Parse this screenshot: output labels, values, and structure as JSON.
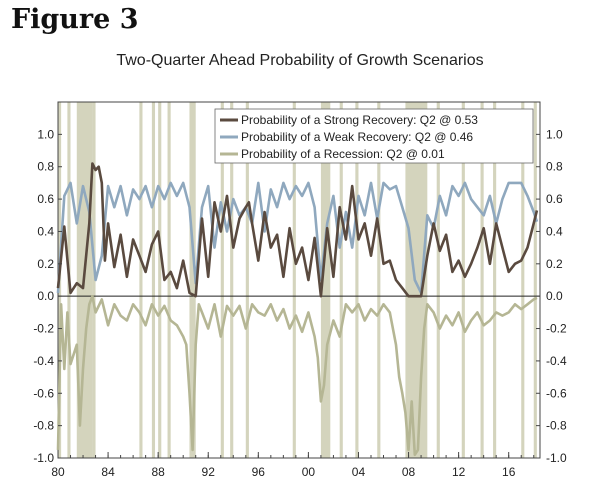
{
  "figure_label": "Figure 3",
  "chart_data": {
    "type": "line",
    "title": "Two-Quarter Ahead Probability of Growth Scenarios",
    "x_ticks": [
      "80",
      "84",
      "88",
      "92",
      "96",
      "00",
      "04",
      "08",
      "12",
      "16"
    ],
    "x_tick_values": [
      1980,
      1984,
      1988,
      1992,
      1996,
      2000,
      2004,
      2008,
      2012,
      2016
    ],
    "xlim": [
      1980,
      2018.5
    ],
    "ylim": [
      -1.0,
      1.2
    ],
    "y_ticks": [
      "1.0",
      "0.8",
      "0.6",
      "0.4",
      "0.2",
      "0.0",
      "-0.2",
      "-0.4",
      "-0.6",
      "-0.8",
      "-1.0"
    ],
    "y_tick_values": [
      1.0,
      0.8,
      0.6,
      0.4,
      0.2,
      0.0,
      -0.2,
      -0.4,
      -0.6,
      -0.8,
      -1.0
    ],
    "legend_position": "top-right",
    "recession_shading": [
      [
        1980.0,
        1980.25
      ],
      [
        1980.75,
        1981.0
      ],
      [
        1981.5,
        1982.75
      ],
      [
        1982.75,
        1983.0
      ],
      [
        1990.5,
        1991.0
      ],
      [
        1993.0,
        1993.25
      ],
      [
        2001.0,
        2001.75
      ],
      [
        2007.75,
        2009.5
      ],
      [
        2010.25,
        2010.5
      ],
      [
        2012.25,
        2012.5
      ],
      [
        2013.75,
        2014.0
      ],
      [
        2014.75,
        2015.0
      ],
      [
        2017.0,
        2017.25
      ],
      [
        2018.0,
        2018.25
      ],
      [
        1986.5,
        1986.75
      ],
      [
        1987.5,
        1987.75
      ],
      [
        1988.0,
        1988.25
      ],
      [
        1988.75,
        1989.0
      ],
      [
        1993.75,
        1994.0
      ],
      [
        1995.0,
        1995.25
      ],
      [
        1998.75,
        1999.0
      ],
      [
        2002.5,
        2002.75
      ],
      [
        2003.75,
        2004.0
      ],
      [
        2005.5,
        2005.75
      ]
    ],
    "series": [
      {
        "name": "Probability of a Strong Recovery: Q2 @ 0.53",
        "color": "#5a4a3f",
        "x": [
          1980,
          1980.5,
          1981,
          1981.5,
          1982,
          1982.5,
          1982.75,
          1983,
          1983.25,
          1983.5,
          1983.75,
          1984,
          1984.5,
          1985,
          1985.5,
          1986,
          1986.5,
          1987,
          1987.5,
          1988,
          1988.5,
          1989,
          1989.5,
          1990,
          1990.5,
          1991,
          1991.5,
          1992,
          1992.5,
          1993,
          1993.5,
          1994,
          1994.5,
          1995,
          1995.25,
          1995.5,
          1996,
          1996.5,
          1997,
          1997.5,
          1998,
          1998.5,
          1999,
          1999.5,
          2000,
          2000.5,
          2001,
          2001.5,
          2002,
          2002.5,
          2003,
          2003.5,
          2004,
          2004.5,
          2005,
          2005.5,
          2006,
          2006.5,
          2007,
          2007.5,
          2008,
          2008.5,
          2009,
          2009.5,
          2010,
          2010.5,
          2011,
          2011.5,
          2012,
          2012.5,
          2013,
          2013.5,
          2014,
          2014.5,
          2015,
          2015.5,
          2016,
          2016.5,
          2017,
          2017.5,
          2018,
          2018.25
        ],
        "y": [
          0.05,
          0.43,
          0.02,
          0.08,
          0.05,
          0.45,
          0.82,
          0.78,
          0.8,
          0.7,
          0.22,
          0.45,
          0.18,
          0.38,
          0.12,
          0.35,
          0.25,
          0.15,
          0.32,
          0.4,
          0.1,
          0.15,
          0.05,
          0.22,
          0.02,
          0.0,
          0.48,
          0.12,
          0.58,
          0.4,
          0.62,
          0.3,
          0.48,
          0.55,
          0.58,
          0.45,
          0.22,
          0.52,
          0.3,
          0.38,
          0.12,
          0.42,
          0.2,
          0.3,
          0.1,
          0.36,
          0.0,
          0.42,
          0.12,
          0.55,
          0.35,
          0.68,
          0.35,
          0.45,
          0.25,
          0.48,
          0.2,
          0.22,
          0.1,
          0.05,
          0.0,
          0.0,
          0.0,
          0.25,
          0.45,
          0.28,
          0.38,
          0.15,
          0.22,
          0.12,
          0.2,
          0.3,
          0.42,
          0.2,
          0.45,
          0.3,
          0.15,
          0.2,
          0.22,
          0.3,
          0.45,
          0.53
        ]
      },
      {
        "name": "Probability of a Weak Recovery: Q2 @ 0.46",
        "color": "#8fa8be",
        "x": [
          1980,
          1980.5,
          1981,
          1981.5,
          1982,
          1982.5,
          1983,
          1983.5,
          1984,
          1984.5,
          1985,
          1985.5,
          1986,
          1986.5,
          1987,
          1987.5,
          1988,
          1988.5,
          1989,
          1989.5,
          1990,
          1990.5,
          1991,
          1991.5,
          1992,
          1992.5,
          1993,
          1993.5,
          1994,
          1994.5,
          1995,
          1995.5,
          1996,
          1996.5,
          1997,
          1997.5,
          1998,
          1998.5,
          1999,
          1999.5,
          2000,
          2000.5,
          2001,
          2001.5,
          2002,
          2002.5,
          2003,
          2003.5,
          2004,
          2004.5,
          2005,
          2005.5,
          2006,
          2006.5,
          2007,
          2007.5,
          2008,
          2008.5,
          2009,
          2009.5,
          2010,
          2010.5,
          2011,
          2011.5,
          2012,
          2012.5,
          2013,
          2013.5,
          2014,
          2014.5,
          2015,
          2015.5,
          2016,
          2016.5,
          2017,
          2017.5,
          2018,
          2018.25
        ],
        "y": [
          0.02,
          0.62,
          0.7,
          0.45,
          0.68,
          0.52,
          0.1,
          0.25,
          0.68,
          0.55,
          0.68,
          0.5,
          0.66,
          0.6,
          0.68,
          0.55,
          0.68,
          0.6,
          0.7,
          0.62,
          0.7,
          0.55,
          0.08,
          0.55,
          0.68,
          0.3,
          0.58,
          0.4,
          0.6,
          0.5,
          0.55,
          0.45,
          0.7,
          0.4,
          0.66,
          0.55,
          0.7,
          0.6,
          0.68,
          0.62,
          0.7,
          0.55,
          0.1,
          0.45,
          0.62,
          0.3,
          0.52,
          0.3,
          0.62,
          0.5,
          0.7,
          0.48,
          0.7,
          0.66,
          0.68,
          0.55,
          0.42,
          0.1,
          0.02,
          0.5,
          0.42,
          0.62,
          0.5,
          0.68,
          0.62,
          0.7,
          0.6,
          0.55,
          0.5,
          0.62,
          0.45,
          0.6,
          0.7,
          0.7,
          0.7,
          0.62,
          0.52,
          0.46
        ]
      },
      {
        "name": "Probability of a Recession: Q2 @ 0.01",
        "color": "#b5b694",
        "x": [
          1980,
          1980.25,
          1980.5,
          1980.75,
          1981,
          1981.5,
          1981.75,
          1982,
          1982.25,
          1982.5,
          1982.75,
          1983,
          1983.5,
          1984,
          1984.5,
          1985,
          1985.5,
          1986,
          1986.5,
          1987,
          1987.5,
          1988,
          1988.5,
          1989,
          1989.5,
          1990,
          1990.25,
          1990.5,
          1990.75,
          1991,
          1991.25,
          1991.5,
          1992,
          1992.5,
          1993,
          1993.5,
          1994,
          1994.5,
          1995,
          1995.5,
          1996,
          1996.5,
          1997,
          1997.5,
          1998,
          1998.5,
          1999,
          1999.5,
          2000,
          2000.5,
          2000.75,
          2001,
          2001.25,
          2001.5,
          2002,
          2002.5,
          2003,
          2003.5,
          2004,
          2004.5,
          2005,
          2005.5,
          2006,
          2006.5,
          2007,
          2007.25,
          2007.5,
          2007.75,
          2008,
          2008.25,
          2008.5,
          2008.75,
          2009,
          2009.25,
          2009.5,
          2010,
          2010.5,
          2011,
          2011.5,
          2012,
          2012.5,
          2013,
          2013.5,
          2014,
          2014.5,
          2015,
          2015.5,
          2016,
          2016.5,
          2017,
          2017.5,
          2018,
          2018.25
        ],
        "y": [
          -0.95,
          -0.05,
          -0.45,
          -0.1,
          -0.42,
          -0.3,
          -0.8,
          -0.45,
          -0.2,
          -0.05,
          0.0,
          -0.1,
          -0.02,
          -0.18,
          -0.05,
          -0.12,
          -0.15,
          -0.05,
          -0.1,
          -0.18,
          -0.05,
          -0.12,
          -0.06,
          -0.15,
          -0.18,
          -0.25,
          -0.3,
          -0.6,
          -0.95,
          -0.3,
          -0.05,
          -0.1,
          -0.2,
          -0.05,
          -0.25,
          -0.06,
          -0.12,
          -0.06,
          -0.2,
          -0.05,
          -0.1,
          -0.12,
          -0.05,
          -0.15,
          -0.08,
          -0.2,
          -0.12,
          -0.22,
          -0.1,
          -0.25,
          -0.38,
          -0.65,
          -0.55,
          -0.3,
          -0.15,
          -0.25,
          -0.05,
          -0.1,
          -0.05,
          -0.15,
          -0.08,
          -0.12,
          -0.05,
          -0.1,
          -0.3,
          -0.5,
          -0.6,
          -0.72,
          -0.95,
          -0.65,
          -0.98,
          -0.95,
          -0.5,
          -0.2,
          -0.05,
          -0.1,
          -0.2,
          -0.12,
          -0.18,
          -0.1,
          -0.22,
          -0.15,
          -0.1,
          -0.18,
          -0.15,
          -0.1,
          -0.12,
          -0.1,
          -0.05,
          -0.08,
          -0.05,
          -0.02,
          -0.01
        ]
      }
    ]
  }
}
